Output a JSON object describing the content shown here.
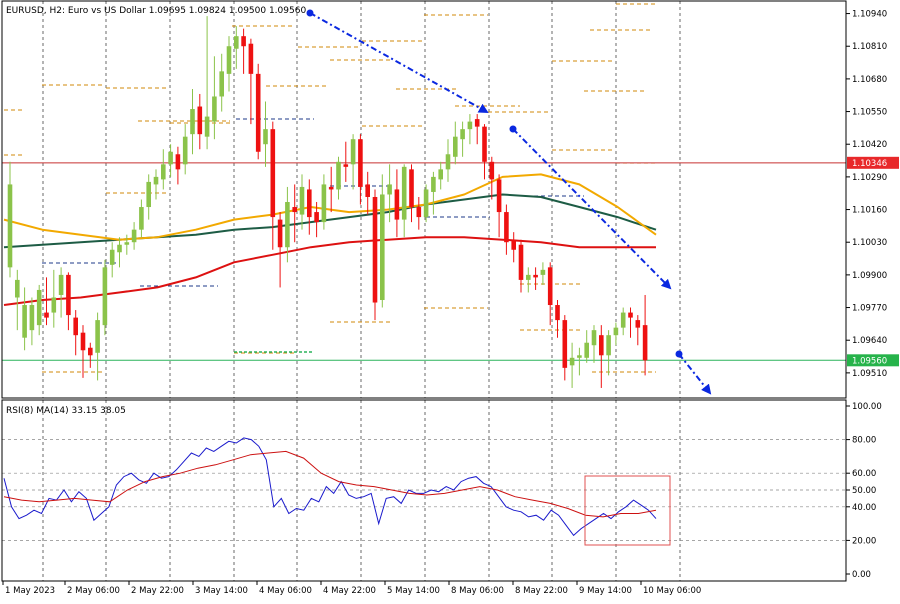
{
  "header": {
    "symbol": "EURUSD, H2:",
    "description": "Euro vs US Dollar",
    "ohlc": "1.09695 1.09824 1.09500 1.09560"
  },
  "rsi_header": "RSI(8) MA(14) 33.15 38.05",
  "colors": {
    "bull": "#8bc34a",
    "bear": "#ee1111",
    "ma_red": "#dd1111",
    "ma_orange": "#f2a900",
    "ma_dark": "#1d5c45",
    "rsi": "#1a1acc",
    "rsi_ma": "#cc1111",
    "arrow": "#0a28e0",
    "level": "#d28a0a",
    "red_line": "#c83232",
    "green_line": "#2bb35c",
    "pivot": "#1e3a8a",
    "box": "#e05050"
  },
  "chart_data": [
    {
      "type": "candlestick",
      "title": "EURUSD, H2: Euro vs US Dollar",
      "ylim": [
        1.0941,
        1.1099
      ],
      "price_ticks": [
        "1.10940",
        "1.10810",
        "1.10680",
        "1.10550",
        "1.10420",
        "1.10290",
        "1.10160",
        "1.10030",
        "1.09900",
        "1.09770",
        "1.09640",
        "1.09510"
      ],
      "time_labels": [
        "1 May 2023",
        "2 May 06:00",
        "2 May 22:00",
        "3 May 14:00",
        "4 May 06:00",
        "4 May 22:00",
        "5 May 14:00",
        "8 May 06:00",
        "8 May 22:00",
        "9 May 14:00",
        "10 May 06:00"
      ],
      "price_labels": [
        {
          "label": "1.10346",
          "value": 1.10346,
          "color": "#e8282a"
        },
        {
          "label": "1.09560",
          "value": 1.0956,
          "color": "#26b34a"
        }
      ],
      "candles": [
        [
          1.0993,
          1.1026,
          1.0989,
          1.1035
        ],
        [
          1.0981,
          1.0988,
          1.0968,
          1.0992
        ],
        [
          1.0965,
          1.0978,
          1.096,
          1.0985
        ],
        [
          1.0968,
          1.0978,
          1.0962,
          1.0981
        ],
        [
          1.097,
          1.0984,
          1.0966,
          1.0986
        ],
        [
          1.0975,
          1.0973,
          1.097,
          1.0989
        ],
        [
          1.0975,
          1.0981,
          1.0969,
          1.0992
        ],
        [
          1.0982,
          1.099,
          1.0973,
          1.0993
        ],
        [
          1.099,
          1.0974,
          1.0968,
          1.0991
        ],
        [
          1.0973,
          1.0966,
          1.0958,
          1.0976
        ],
        [
          1.0967,
          1.096,
          1.0949,
          1.097
        ],
        [
          1.0961,
          1.0958,
          1.0953,
          1.0963
        ],
        [
          1.0959,
          1.0972,
          1.0948,
          1.0975
        ],
        [
          1.097,
          1.0993,
          1.0966,
          1.0996
        ],
        [
          1.0994,
          1.1,
          1.0989,
          1.1003
        ],
        [
          1.0999,
          1.1002,
          1.0993,
          1.1005
        ],
        [
          1.1002,
          1.1003,
          1.0998,
          1.1006
        ],
        [
          1.1003,
          1.1008,
          1.1,
          1.1011
        ],
        [
          1.1008,
          1.1017,
          1.1005,
          1.102
        ],
        [
          1.1017,
          1.1027,
          1.1012,
          1.103
        ],
        [
          1.1026,
          1.1029,
          1.102,
          1.1032
        ],
        [
          1.1028,
          1.1034,
          1.1024,
          1.104
        ],
        [
          1.1034,
          1.1039,
          1.1029,
          1.1042
        ],
        [
          1.1038,
          1.1032,
          1.1026,
          1.1041
        ],
        [
          1.1034,
          1.1045,
          1.103,
          1.105
        ],
        [
          1.1046,
          1.1056,
          1.1038,
          1.1064
        ],
        [
          1.1057,
          1.1046,
          1.104,
          1.1062
        ],
        [
          1.1045,
          1.1053,
          1.104,
          1.1093
        ],
        [
          1.1051,
          1.1061,
          1.1044,
          1.1077
        ],
        [
          1.1061,
          1.1071,
          1.1055,
          1.1078
        ],
        [
          1.107,
          1.1081,
          1.1063,
          1.1085
        ],
        [
          1.108,
          1.1085,
          1.1072,
          1.1089
        ],
        [
          1.1085,
          1.1081,
          1.107,
          1.1088
        ],
        [
          1.1082,
          1.107,
          1.105,
          1.1084
        ],
        [
          1.107,
          1.1039,
          1.1036,
          1.1074
        ],
        [
          1.1042,
          1.1048,
          1.1033,
          1.1059
        ],
        [
          1.1048,
          1.1013,
          1.1,
          1.1051
        ],
        [
          1.1012,
          1.1001,
          1.0985,
          1.1015
        ],
        [
          1.1001,
          1.1019,
          1.0995,
          1.1025
        ],
        [
          1.1017,
          1.1015,
          1.1003,
          1.1026
        ],
        [
          1.1014,
          1.1025,
          1.1008,
          1.103
        ],
        [
          1.1024,
          1.1013,
          1.1006,
          1.1028
        ],
        [
          1.1015,
          1.1011,
          1.1005,
          1.1019
        ],
        [
          1.1011,
          1.1026,
          1.1008,
          1.103
        ],
        [
          1.1025,
          1.1024,
          1.1015,
          1.1033
        ],
        [
          1.1024,
          1.1035,
          1.102,
          1.1037
        ],
        [
          1.1034,
          1.1033,
          1.1027,
          1.1043
        ],
        [
          1.1034,
          1.1044,
          1.1024,
          1.1046
        ],
        [
          1.1044,
          1.1025,
          1.1018,
          1.1046
        ],
        [
          1.1026,
          1.1021,
          1.1014,
          1.1031
        ],
        [
          1.1021,
          1.0979,
          1.0972,
          1.1024
        ],
        [
          1.098,
          1.1022,
          1.0977,
          1.103
        ],
        [
          1.1022,
          1.1026,
          1.1011,
          1.1034
        ],
        [
          1.1024,
          1.1012,
          1.1005,
          1.1032
        ],
        [
          1.1012,
          1.1033,
          1.1005,
          1.1034
        ],
        [
          1.1032,
          1.1017,
          1.1011,
          1.1034
        ],
        [
          1.1017,
          1.1013,
          1.1008,
          1.1021
        ],
        [
          1.1013,
          1.1024,
          1.1011,
          1.1026
        ],
        [
          1.1023,
          1.1029,
          1.1014,
          1.1031
        ],
        [
          1.1028,
          1.1032,
          1.1024,
          1.1035
        ],
        [
          1.1032,
          1.1038,
          1.1027,
          1.1044
        ],
        [
          1.1037,
          1.1045,
          1.1034,
          1.1051
        ],
        [
          1.1044,
          1.1048,
          1.1037,
          1.1051
        ],
        [
          1.1048,
          1.1051,
          1.1042,
          1.1054
        ],
        [
          1.1052,
          1.1049,
          1.1042,
          1.1054
        ],
        [
          1.1049,
          1.1035,
          1.1028,
          1.105
        ],
        [
          1.1035,
          1.1028,
          1.102,
          1.1037
        ],
        [
          1.1028,
          1.1015,
          1.1005,
          1.103
        ],
        [
          1.1015,
          1.1003,
          1.0998,
          1.1018
        ],
        [
          1.1004,
          1.1,
          1.0995,
          1.1007
        ],
        [
          1.1002,
          1.0988,
          1.0983,
          1.1004
        ],
        [
          1.0988,
          1.099,
          1.0983,
          1.0993
        ],
        [
          1.099,
          1.0989,
          1.0984,
          1.0993
        ],
        [
          1.099,
          1.0992,
          1.0986,
          1.0995
        ],
        [
          1.0993,
          1.0978,
          1.097,
          1.0995
        ],
        [
          1.0978,
          1.0972,
          1.0965,
          1.098
        ],
        [
          1.0972,
          1.0953,
          1.0948,
          1.0974
        ],
        [
          1.0954,
          1.0957,
          1.0945,
          1.0963
        ],
        [
          1.0957,
          1.0958,
          1.095,
          1.0961
        ],
        [
          1.0957,
          1.0963,
          1.0955,
          1.0968
        ],
        [
          1.0962,
          1.0968,
          1.0955,
          1.097
        ],
        [
          1.0966,
          1.0958,
          1.0945,
          1.097
        ],
        [
          1.0958,
          1.0966,
          1.095,
          1.0968
        ],
        [
          1.0966,
          1.0969,
          1.0962,
          1.0971
        ],
        [
          1.0969,
          1.0975,
          1.0966,
          1.0977
        ],
        [
          1.0975,
          1.0973,
          1.0965,
          1.0977
        ],
        [
          1.0972,
          1.0969,
          1.0962,
          1.0974
        ],
        [
          1.097,
          1.0956,
          1.095,
          1.0982
        ]
      ],
      "moving_averages": [
        {
          "color": "#1d5c45",
          "values": [
            1.1001,
            1.1002,
            1.1003,
            1.1004,
            1.1005,
            1.1006,
            1.1008,
            1.1009,
            1.1011,
            1.1013,
            1.1015,
            1.1018,
            1.102,
            1.1022,
            1.1021,
            1.1017,
            1.1013,
            1.1008
          ]
        },
        {
          "color": "#f2a900",
          "values": [
            1.1012,
            1.1008,
            1.1006,
            1.1004,
            1.1005,
            1.1008,
            1.1012,
            1.1014,
            1.1017,
            1.1015,
            1.1016,
            1.1018,
            1.1022,
            1.1029,
            1.103,
            1.1026,
            1.1017,
            1.1006
          ]
        },
        {
          "color": "#dd1111",
          "values": [
            1.0978,
            1.098,
            1.0981,
            1.0983,
            1.0985,
            1.0989,
            1.0995,
            1.0998,
            1.1001,
            1.1003,
            1.1004,
            1.1005,
            1.1005,
            1.1004,
            1.1003,
            1.1001,
            1.1001,
            1.1001
          ]
        }
      ]
    },
    {
      "type": "line",
      "title": "RSI(8) MA(14) 33.15 38.05",
      "ylim": [
        0,
        100
      ],
      "y_ticks": [
        "100.00",
        "80.00",
        "60.00",
        "50.00",
        "40.00",
        "20.00",
        "0.00"
      ],
      "series": [
        {
          "name": "RSI(8)",
          "values": [
            57,
            40,
            33,
            35,
            38,
            36,
            45,
            44,
            50,
            43,
            49,
            45,
            32,
            36,
            40,
            53,
            58,
            60,
            56,
            54,
            60,
            57,
            58,
            62,
            67,
            72,
            70,
            75,
            73,
            76,
            79,
            78,
            81,
            80,
            76,
            68,
            40,
            45,
            36,
            39,
            38,
            45,
            43,
            52,
            48,
            55,
            47,
            45,
            46,
            48,
            30,
            45,
            46,
            42,
            50,
            48,
            48,
            50,
            49,
            52,
            50,
            55,
            57,
            58,
            54,
            52,
            46,
            40,
            38,
            37,
            34,
            35,
            32,
            38,
            35,
            29,
            23,
            27,
            30,
            33,
            36,
            33,
            37,
            40,
            44,
            41,
            38,
            33
          ]
        },
        {
          "name": "MA(14)",
          "values": [
            46,
            44,
            43,
            44,
            45,
            44,
            43,
            50,
            55,
            58,
            60,
            63,
            65,
            68,
            71,
            72,
            73,
            69,
            60,
            55,
            53,
            52,
            50,
            48,
            47,
            48,
            50,
            52,
            50,
            46,
            44,
            42,
            39,
            35,
            34,
            36,
            36,
            38
          ]
        }
      ]
    }
  ]
}
